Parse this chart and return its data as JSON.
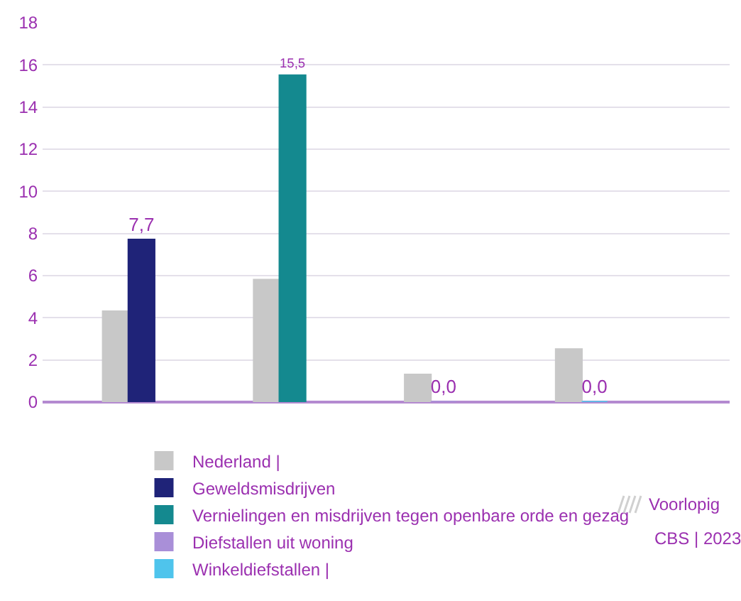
{
  "chart_data": {
    "type": "bar",
    "categories": [
      null,
      null,
      null,
      null
    ],
    "series": [
      {
        "name": "Nederland |",
        "color": "#c8c8c8",
        "values": [
          4.3,
          5.8,
          1.3,
          2.5
        ]
      },
      {
        "name": "Geweldsmisdrijven",
        "color": "#1f2378",
        "values": [
          7.7,
          null,
          null,
          null
        ],
        "value_labels": [
          "7,7",
          null,
          null,
          null
        ]
      },
      {
        "name": "Vernielingen en misdrijven tegen openbare orde en gezag",
        "color": "#14898f",
        "values": [
          null,
          15.5,
          null,
          null
        ],
        "value_labels": [
          null,
          "15,5",
          null,
          null
        ]
      },
      {
        "name": "Diefstallen uit woning",
        "color": "#a98fd8",
        "values": [
          null,
          null,
          0,
          null
        ],
        "value_labels": [
          null,
          null,
          "0,0",
          null
        ]
      },
      {
        "name": "Winkeldiefstallen |",
        "color": "#4fc4ec",
        "values": [
          null,
          null,
          null,
          0
        ],
        "value_labels": [
          null,
          null,
          null,
          "0,0"
        ]
      }
    ],
    "ylim": [
      0,
      18
    ],
    "yticks": [
      0,
      2,
      4,
      6,
      8,
      10,
      12,
      14,
      16,
      18
    ],
    "grid": "y",
    "legend": "bottom",
    "annotations": [
      "Voorlopig",
      "CBS | 2023"
    ]
  }
}
